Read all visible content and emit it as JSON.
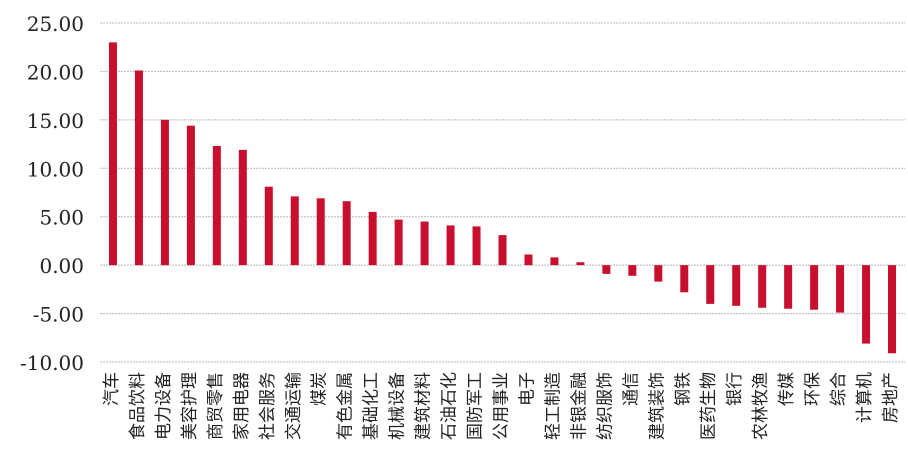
{
  "chart_data": {
    "type": "bar",
    "title": "",
    "xlabel": "",
    "ylabel": "",
    "ylim": [
      -10,
      25
    ],
    "yticks": [
      "25.00",
      "20.00",
      "15.00",
      "10.00",
      "5.00",
      "0.00",
      "-5.00",
      "-10.00"
    ],
    "grid": true,
    "legend": "none",
    "bar_color": "#c8102e",
    "categories": [
      "汽车",
      "食品饮料",
      "电力设备",
      "美容护理",
      "商贸零售",
      "家用电器",
      "社会服务",
      "交通运输",
      "煤炭",
      "有色金属",
      "基础化工",
      "机械设备",
      "建筑材料",
      "石油石化",
      "国防军工",
      "公用事业",
      "电子",
      "轻工制造",
      "非银金融",
      "纺织服饰",
      "通信",
      "建筑装饰",
      "钢铁",
      "医药生物",
      "银行",
      "农林牧渔",
      "传媒",
      "环保",
      "综合",
      "计算机",
      "房地产"
    ],
    "values": [
      23.0,
      20.1,
      15.0,
      14.4,
      12.3,
      11.9,
      8.1,
      7.1,
      6.9,
      6.6,
      5.5,
      4.7,
      4.5,
      4.1,
      4.0,
      3.1,
      1.1,
      0.8,
      0.3,
      -0.9,
      -1.1,
      -1.7,
      -2.8,
      -4.0,
      -4.2,
      -4.4,
      -4.5,
      -4.6,
      -4.9,
      -8.1,
      -9.1
    ]
  }
}
